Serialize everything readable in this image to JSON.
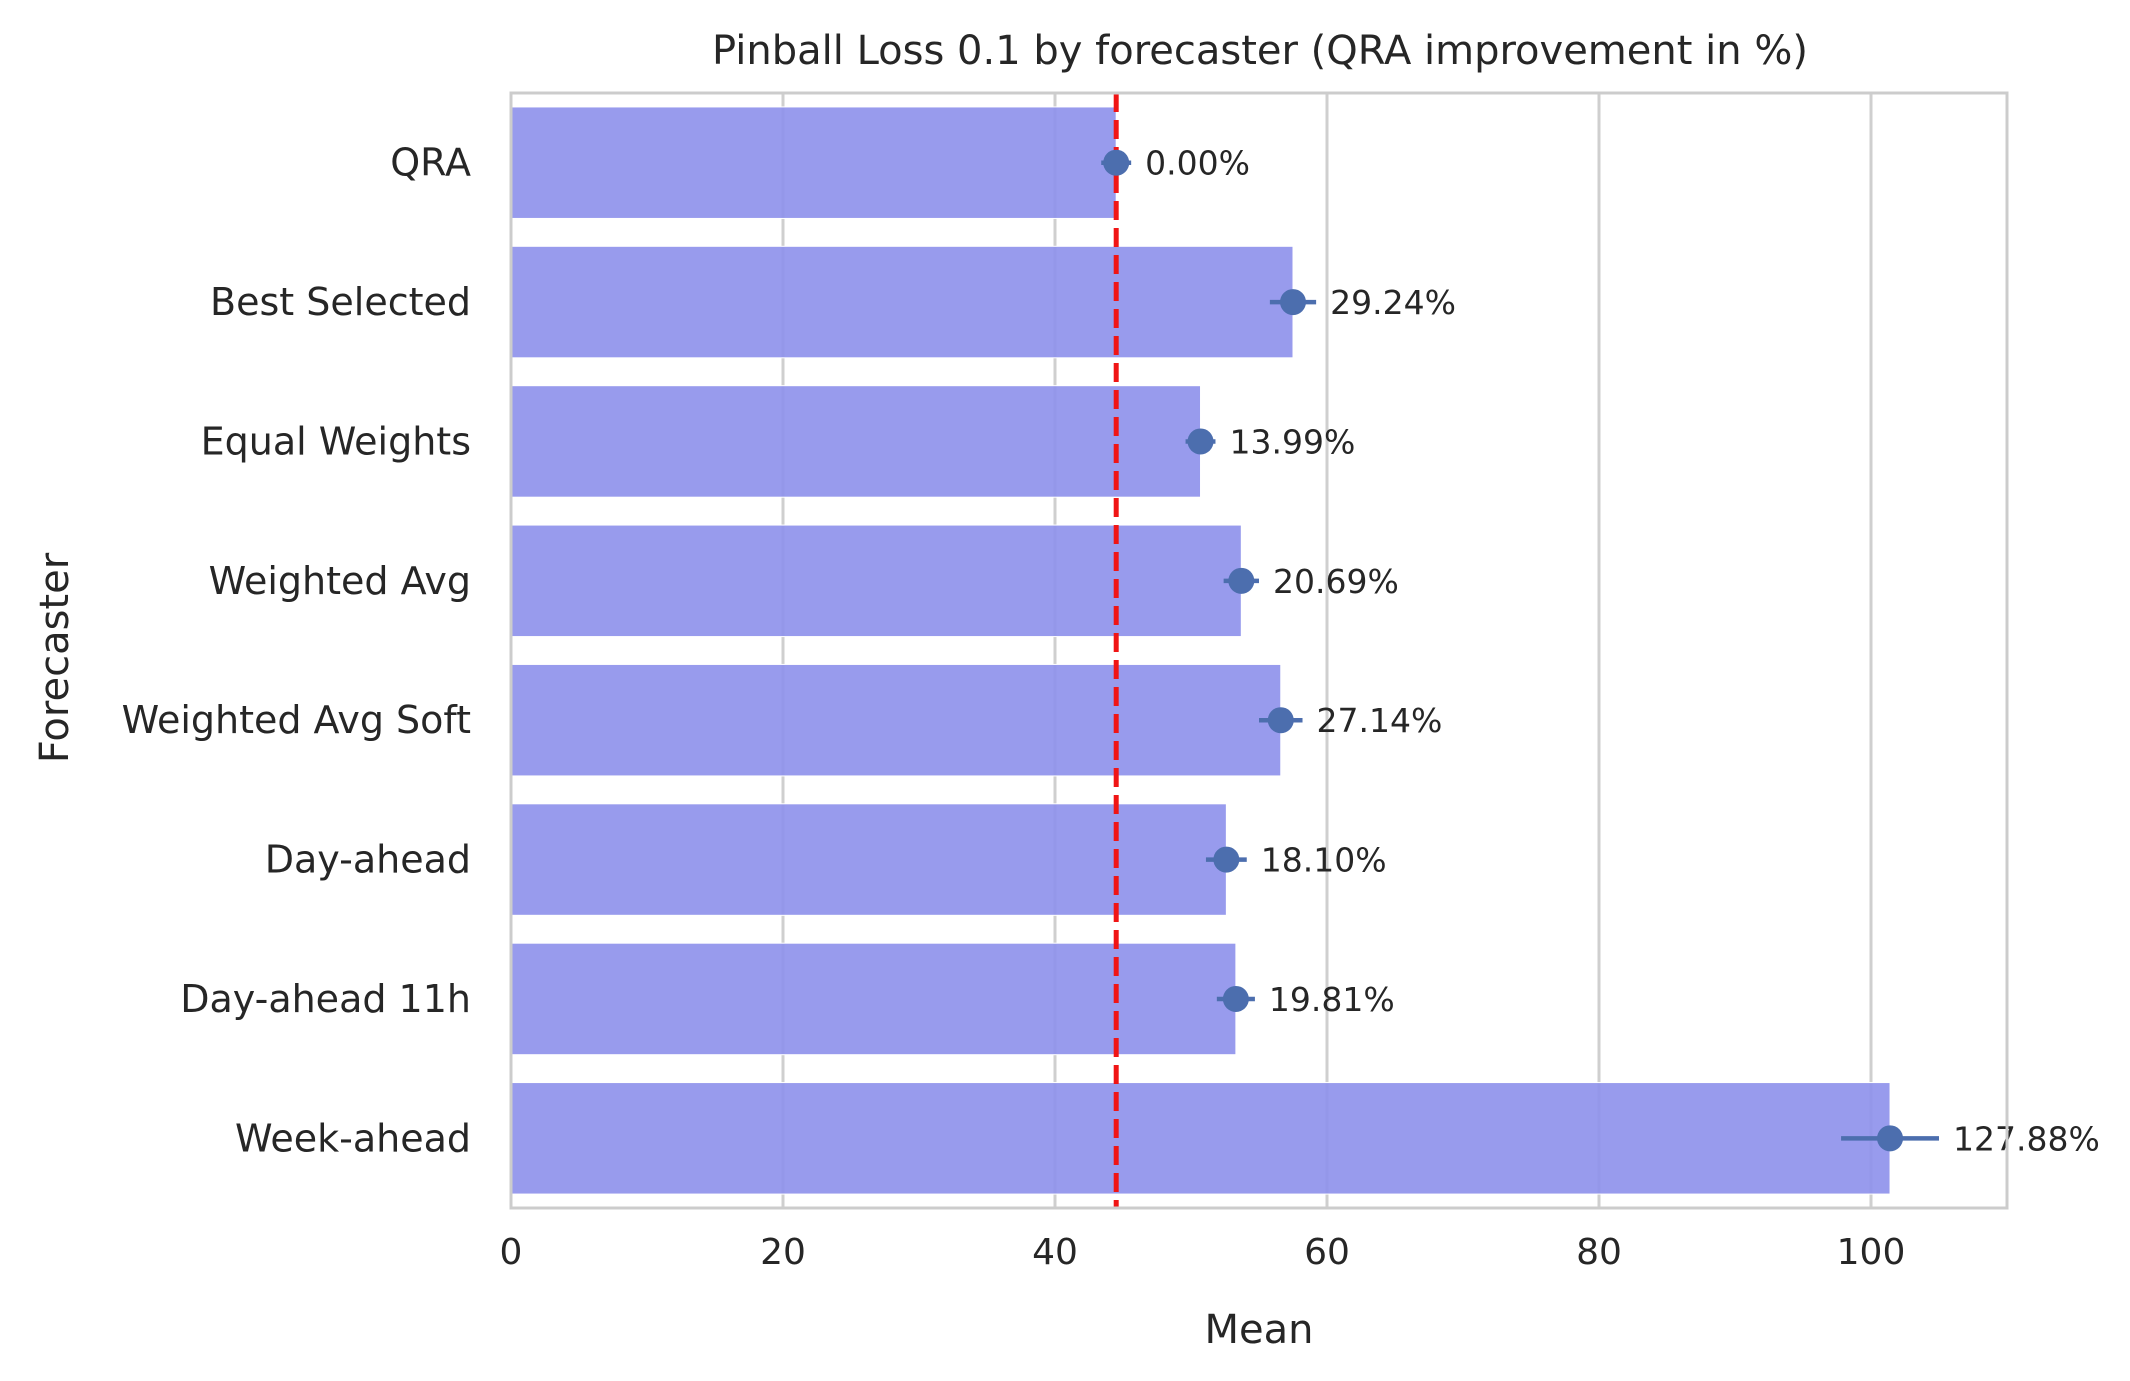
{
  "chart_data": {
    "type": "bar",
    "orientation": "horizontal",
    "title": "Pinball Loss 0.1 by forecaster (QRA improvement in %)",
    "xlabel": "Mean",
    "ylabel": "Forecaster",
    "xlim": [
      0,
      110
    ],
    "xticks": [
      0,
      20,
      40,
      60,
      80,
      100
    ],
    "grid": true,
    "grid_axis": "x",
    "categories": [
      "QRA",
      "Best Selected",
      "Equal Weights",
      "Weighted Avg",
      "Weighted Avg Soft",
      "Day-ahead",
      "Day-ahead 11h",
      "Week-ahead"
    ],
    "values": [
      44.5,
      57.5,
      50.7,
      53.7,
      56.6,
      52.6,
      53.3,
      101.4
    ],
    "error_bars": [
      {
        "low": 43.4,
        "high": 45.6
      },
      {
        "low": 55.8,
        "high": 59.2
      },
      {
        "low": 49.6,
        "high": 51.8
      },
      {
        "low": 52.4,
        "high": 55.0
      },
      {
        "low": 55.0,
        "high": 58.2
      },
      {
        "low": 51.1,
        "high": 54.1
      },
      {
        "low": 51.9,
        "high": 54.7
      },
      {
        "low": 97.8,
        "high": 105.0
      }
    ],
    "data_labels": [
      "0.00%",
      "29.24%",
      "13.99%",
      "20.69%",
      "27.14%",
      "18.10%",
      "19.81%",
      "127.88%"
    ],
    "reference_line": {
      "value": 44.5,
      "color": "#f01515",
      "style": "dashed"
    },
    "colors": {
      "bar": "#8f92ec",
      "point": "#4c6eae",
      "grid": "#cfcfcf",
      "spine": "#cccccc",
      "text": "#262626"
    }
  }
}
